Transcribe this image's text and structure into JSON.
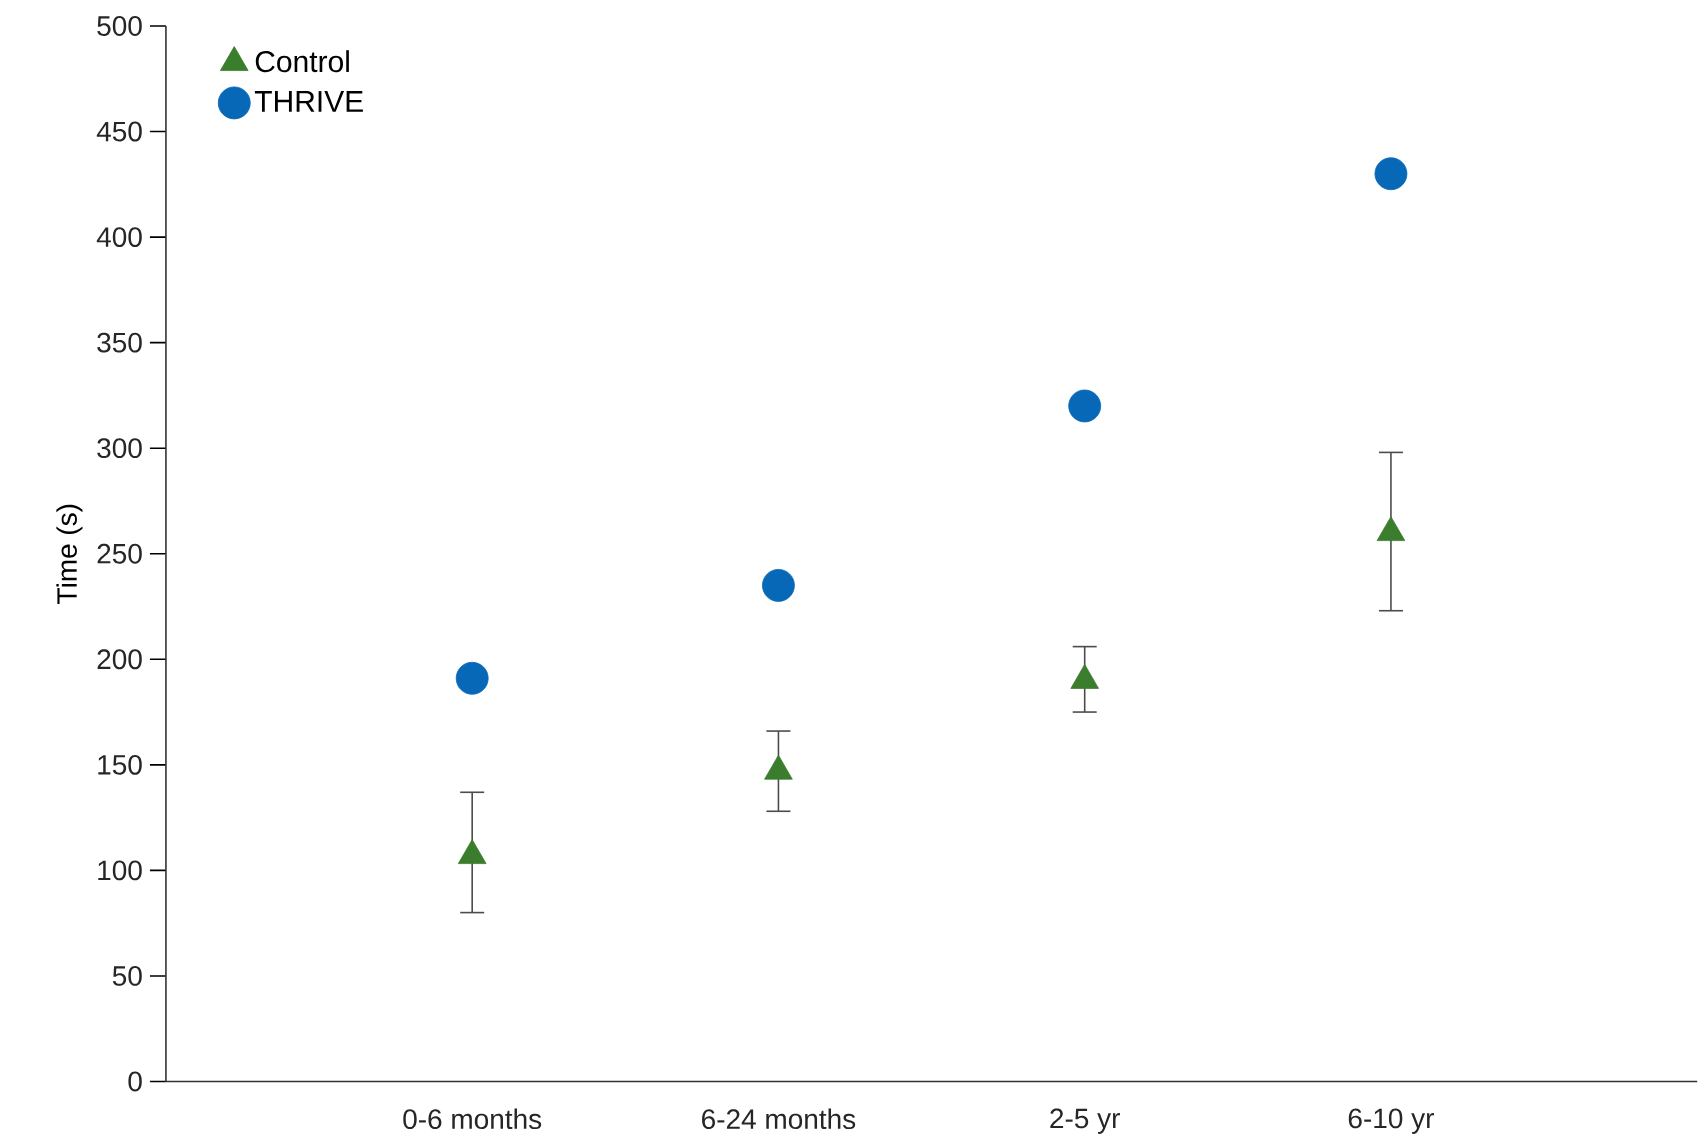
{
  "chart_data": {
    "type": "scatter",
    "ylabel": "Time (s)",
    "categories": [
      "0-6 months",
      "6-24 months",
      "2-5 yr",
      "6-10 yr"
    ],
    "series": [
      {
        "name": "Control",
        "color": "#3a7d2c",
        "marker": "triangle",
        "values": [
          107,
          147,
          190,
          260
        ],
        "errors": [
          [
            80,
            137
          ],
          [
            128,
            166
          ],
          [
            175,
            206
          ],
          [
            223,
            298
          ]
        ]
      },
      {
        "name": "THRIVE",
        "color": "#0868b8",
        "marker": "circle",
        "values": [
          191,
          235,
          320,
          430
        ]
      }
    ],
    "ylim": [
      0,
      500
    ],
    "yticks": [
      0,
      50,
      100,
      150,
      200,
      250,
      300,
      350,
      400,
      450,
      500
    ],
    "legend": "top left",
    "grid": false
  }
}
